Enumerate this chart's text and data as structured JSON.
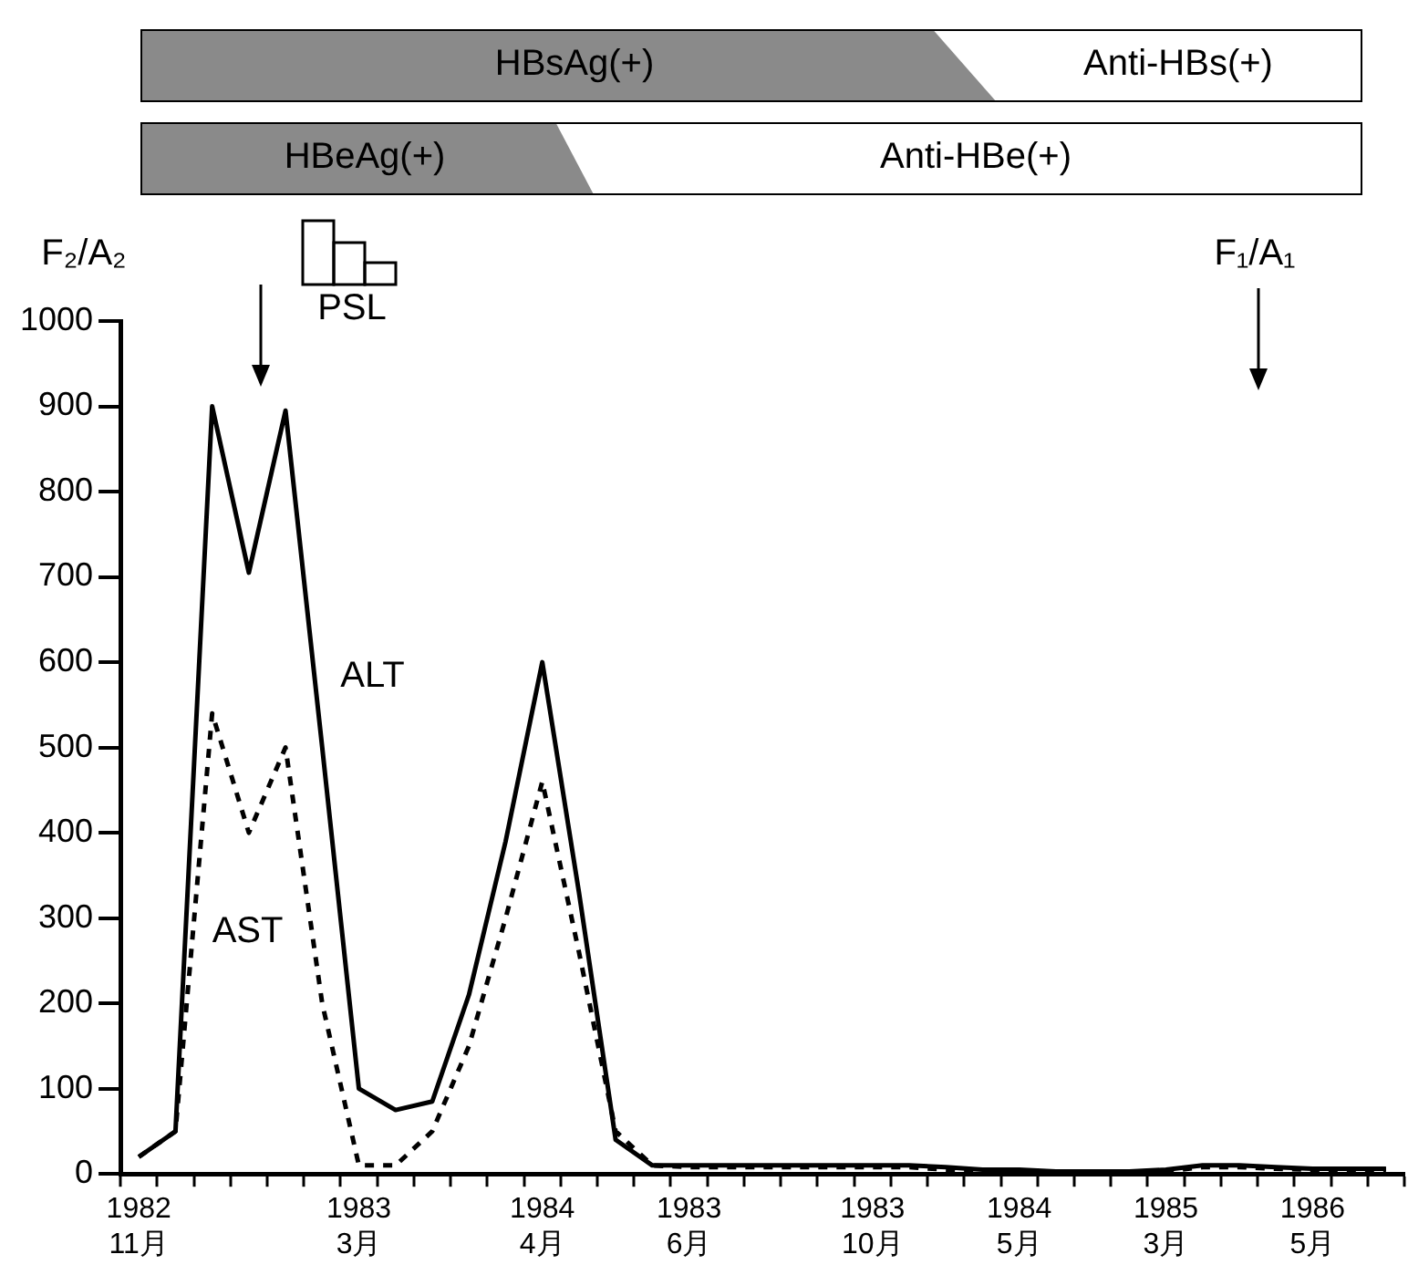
{
  "chart_data": {
    "type": "line",
    "categories": [
      "1982\n11月",
      null,
      null,
      null,
      null,
      null,
      "1983\n3月",
      null,
      null,
      null,
      null,
      "1984\n4月",
      null,
      null,
      null,
      "1983\n6月",
      null,
      null,
      null,
      null,
      "1983\n10月",
      null,
      null,
      null,
      "1984\n5月",
      null,
      null,
      null,
      "1985\n3月",
      null,
      null,
      null,
      "1986\n5月",
      null,
      null
    ],
    "series": [
      {
        "name": "ALT",
        "color": "#000000",
        "line_style": "solid",
        "values": [
          20,
          50,
          900,
          705,
          895,
          500,
          100,
          75,
          85,
          210,
          390,
          600,
          330,
          40,
          10,
          10,
          10,
          10,
          10,
          10,
          10,
          10,
          8,
          5,
          5,
          3,
          3,
          3,
          5,
          10,
          10,
          8,
          6,
          6,
          6
        ]
      },
      {
        "name": "AST",
        "color": "#000000",
        "line_style": "dotted",
        "values": [
          20,
          50,
          540,
          400,
          500,
          200,
          10,
          10,
          50,
          150,
          300,
          460,
          260,
          50,
          10,
          8,
          8,
          8,
          8,
          8,
          8,
          8,
          5,
          3,
          3,
          2,
          2,
          2,
          3,
          8,
          8,
          6,
          5,
          5,
          5
        ]
      }
    ],
    "ylim": [
      0,
      1000
    ],
    "yticks": [
      0,
      100,
      200,
      300,
      400,
      500,
      600,
      700,
      800,
      900,
      1000
    ],
    "grid": false,
    "legend": false,
    "marker": "none",
    "annotations": [
      "HBsAg(+)",
      "Anti-HBs(+)",
      "HBeAg(+)",
      "Anti-HBe(+)",
      "F₂/A₂",
      "PSL",
      "F₁/A₁"
    ]
  }
}
